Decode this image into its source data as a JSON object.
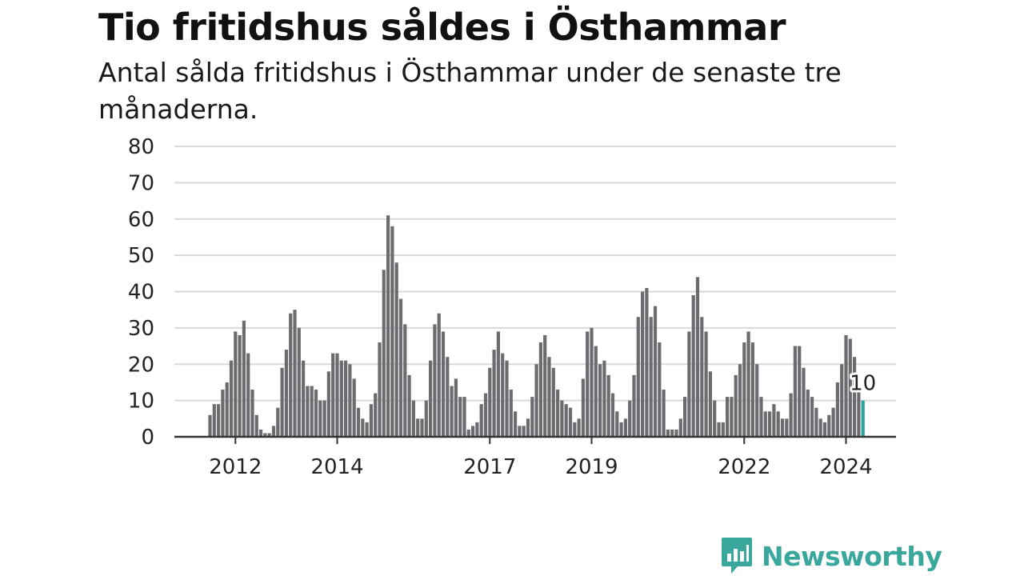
{
  "header": {
    "title": "Tio fritidshus såldes i Östhammar",
    "subtitle": "Antal sålda fritidshus i Östhammar under de senaste tre månaderna."
  },
  "brand": {
    "name": "Newsworthy"
  },
  "colors": {
    "bar": "#6b6b70",
    "highlight": "#2aa39a",
    "grid": "#d9d9d9",
    "axis": "#333333",
    "brand": "#3aa79d"
  },
  "chart_data": {
    "type": "bar",
    "ylim": [
      0,
      80
    ],
    "yticks": [
      0,
      10,
      20,
      30,
      40,
      50,
      60,
      70,
      80
    ],
    "xticks": [
      "2012",
      "2014",
      "2017",
      "2019",
      "2022",
      "2024"
    ],
    "xstart": "2011-07",
    "grid": true,
    "values": [
      6,
      9,
      9,
      13,
      15,
      21,
      29,
      28,
      32,
      23,
      13,
      6,
      2,
      1,
      1,
      3,
      8,
      19,
      24,
      34,
      35,
      30,
      21,
      14,
      14,
      13,
      10,
      10,
      18,
      23,
      23,
      21,
      21,
      20,
      16,
      8,
      5,
      4,
      9,
      12,
      26,
      46,
      61,
      58,
      48,
      38,
      31,
      17,
      10,
      5,
      5,
      10,
      21,
      31,
      34,
      29,
      22,
      14,
      16,
      11,
      11,
      2,
      3,
      4,
      9,
      12,
      19,
      24,
      29,
      23,
      21,
      13,
      7,
      3,
      3,
      5,
      11,
      20,
      26,
      28,
      22,
      19,
      13,
      10,
      9,
      8,
      4,
      5,
      16,
      29,
      30,
      25,
      20,
      21,
      17,
      12,
      7,
      4,
      5,
      10,
      17,
      33,
      40,
      41,
      33,
      36,
      26,
      13,
      2,
      2,
      2,
      5,
      11,
      29,
      39,
      44,
      33,
      29,
      18,
      10,
      4,
      4,
      11,
      11,
      17,
      20,
      26,
      29,
      26,
      20,
      11,
      7,
      7,
      9,
      7,
      5,
      5,
      12,
      25,
      25,
      19,
      13,
      11,
      8,
      5,
      4,
      6,
      8,
      15,
      20,
      28,
      27,
      22,
      13,
      10
    ],
    "highlight_label": "10"
  }
}
